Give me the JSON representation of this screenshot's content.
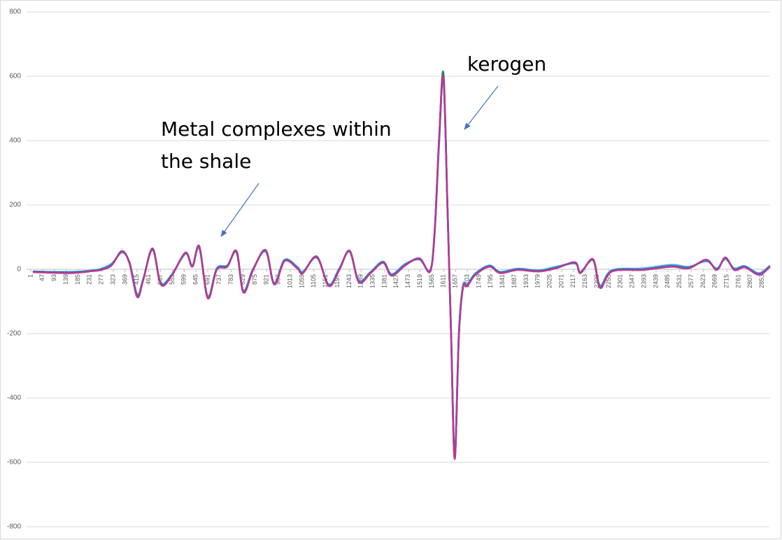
{
  "chart_data": {
    "type": "line",
    "x": [
      12,
      154,
      236,
      276,
      317,
      356,
      386,
      416,
      440,
      476,
      508,
      549,
      604,
      631,
      658,
      691,
      726,
      767,
      803,
      830,
      868,
      917,
      950,
      991,
      1040,
      1062,
      1116,
      1163,
      1204,
      1244,
      1280,
      1326,
      1375,
      1408,
      1463,
      1517,
      1558,
      1576,
      1593,
      1610,
      1626,
      1640,
      1654,
      1670,
      1686,
      1703,
      1735,
      1790,
      1831,
      1899,
      1981,
      2049,
      2123,
      2144,
      2193,
      2221,
      2267,
      2390,
      2499,
      2567,
      2635,
      2676,
      2709,
      2744,
      2785,
      2840,
      2881
    ],
    "series": [
      {
        "color": "#1d7a3e",
        "values": [
          -7,
          -10,
          -5,
          0,
          15,
          55,
          20,
          -85,
          -30,
          63,
          -45,
          -20,
          50,
          10,
          70,
          -88,
          0,
          10,
          55,
          -70,
          0,
          58,
          -45,
          28,
          5,
          -10,
          38,
          -50,
          0,
          57,
          -38,
          -10,
          22,
          -18,
          15,
          32,
          -5,
          120,
          400,
          610,
          185,
          -205,
          -583,
          -207,
          -55,
          -50,
          -15,
          10,
          -10,
          0,
          -5,
          5,
          20,
          -10,
          30,
          -55,
          -5,
          0,
          10,
          5,
          28,
          0,
          35,
          0,
          8,
          -15,
          8
        ]
      },
      {
        "color": "#27b0d6",
        "values": [
          -7,
          -8,
          -4,
          2,
          18,
          52,
          22,
          -78,
          -28,
          60,
          -42,
          -18,
          48,
          12,
          65,
          -84,
          3,
          12,
          52,
          -66,
          2,
          55,
          -42,
          30,
          8,
          -8,
          36,
          -47,
          3,
          54,
          -35,
          -8,
          24,
          -15,
          18,
          30,
          -3,
          115,
          390,
          590,
          180,
          -200,
          -580,
          -200,
          -52,
          -47,
          -12,
          12,
          -8,
          2,
          -3,
          8,
          18,
          -8,
          28,
          -50,
          -3,
          3,
          14,
          8,
          25,
          3,
          32,
          3,
          10,
          -12,
          10
        ]
      },
      {
        "color": "#3a63c8",
        "values": [
          -7,
          -10,
          -5,
          0,
          15,
          55,
          20,
          -82,
          -30,
          63,
          -45,
          -20,
          50,
          10,
          70,
          -88,
          0,
          10,
          55,
          -70,
          0,
          58,
          -45,
          28,
          5,
          -10,
          38,
          -50,
          0,
          57,
          -38,
          -10,
          22,
          -18,
          15,
          32,
          -5,
          120,
          400,
          600,
          185,
          -205,
          -587,
          -207,
          -55,
          -50,
          -15,
          10,
          -10,
          0,
          -5,
          5,
          20,
          -10,
          30,
          -55,
          -5,
          0,
          10,
          5,
          28,
          0,
          35,
          0,
          8,
          -15,
          8
        ]
      },
      {
        "color": "#c3358c",
        "values": [
          -9,
          -12,
          -6,
          -2,
          13,
          57,
          18,
          -86,
          -32,
          65,
          -47,
          -22,
          52,
          8,
          72,
          -90,
          -2,
          8,
          57,
          -72,
          -2,
          60,
          -47,
          26,
          3,
          -12,
          40,
          -52,
          -2,
          58,
          -40,
          -12,
          20,
          -20,
          13,
          34,
          -7,
          122,
          405,
          595,
          190,
          -210,
          -590,
          -212,
          -58,
          -52,
          -17,
          8,
          -12,
          -2,
          -7,
          3,
          22,
          -12,
          32,
          -58,
          -7,
          -2,
          8,
          3,
          30,
          -2,
          37,
          -2,
          6,
          -17,
          6
        ]
      }
    ],
    "xlim": [
      1,
      2881
    ],
    "xticks": [
      1,
      47,
      93,
      139,
      185,
      231,
      277,
      323,
      369,
      415,
      461,
      507,
      553,
      599,
      645,
      691,
      737,
      783,
      829,
      875,
      921,
      967,
      1013,
      1059,
      1105,
      1151,
      1197,
      1243,
      1289,
      1335,
      1381,
      1427,
      1473,
      1519,
      1565,
      1611,
      1657,
      1703,
      1749,
      1795,
      1841,
      1887,
      1933,
      1979,
      2025,
      2071,
      2117,
      2163,
      2209,
      2255,
      2301,
      2347,
      2393,
      2439,
      2485,
      2531,
      2577,
      2623,
      2669,
      2715,
      2761,
      2807,
      2853
    ],
    "ylim": [
      -800,
      800
    ],
    "yticks": [
      -800,
      -600,
      -400,
      -200,
      0,
      200,
      400,
      600,
      800
    ],
    "grid": true,
    "annotations": [
      {
        "lines": [
          "kerogen"
        ]
      },
      {
        "lines": [
          "Metal complexes within",
          "the shale"
        ]
      }
    ]
  }
}
